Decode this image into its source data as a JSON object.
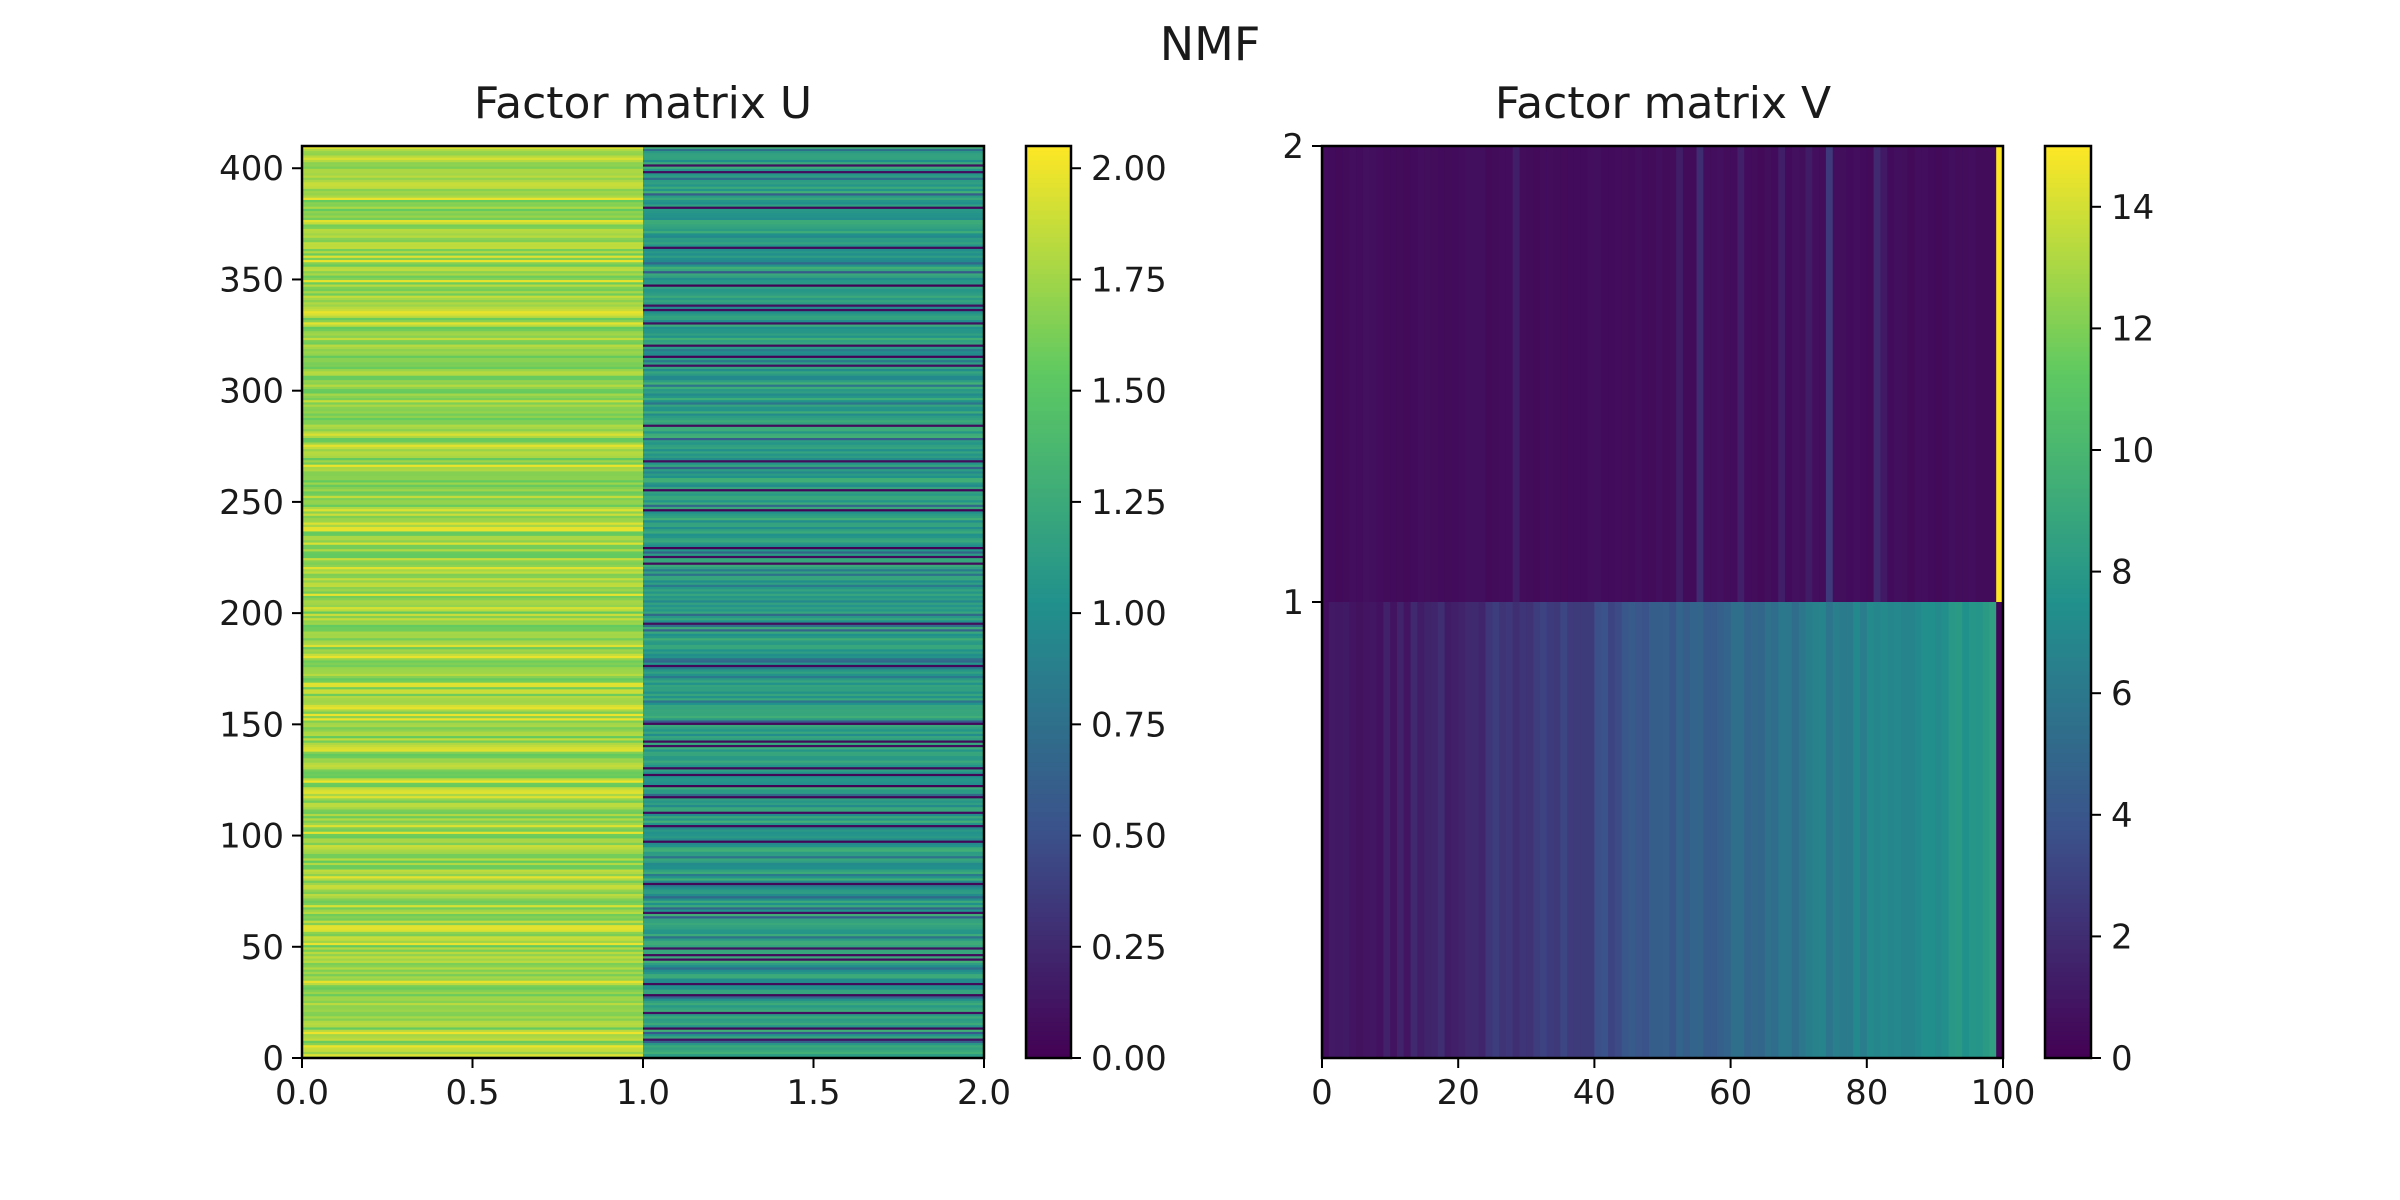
{
  "chart_data": {
    "type": "heatmap",
    "suptitle": "NMF",
    "colormap": [
      "#440154",
      "#3b528b",
      "#21918c",
      "#5ec962",
      "#fde725"
    ],
    "panels": [
      {
        "title": "Factor matrix U",
        "xlim": [
          0,
          2
        ],
        "ylim": [
          0,
          410
        ],
        "xticks": [
          "0.0",
          "0.5",
          "1.0",
          "1.5",
          "2.0"
        ],
        "yticks": [
          "0",
          "50",
          "100",
          "150",
          "200",
          "250",
          "300",
          "350",
          "400"
        ],
        "n_rows": 410,
        "columns": [
          {
            "name": "component 0",
            "typical_value": 1.8,
            "range": [
              1.55,
              2.0
            ]
          },
          {
            "name": "component 1",
            "typical_value": 1.2,
            "range": [
              0.0,
              1.35
            ],
            "low_rows": [
              8,
              13,
              20,
              28,
              33,
              44,
              46,
              49,
              65,
              78,
              97,
              104,
              110,
              117,
              122,
              127,
              130,
              140,
              142,
              150,
              176,
              195,
              222,
              225,
              229,
              246,
              255,
              268,
              284,
              311,
              315,
              320,
              330,
              336,
              338,
              347,
              364,
              382,
              398,
              401
            ]
          }
        ],
        "colorbar": {
          "min": 0.0,
          "max": 2.05,
          "ticks": [
            "0.00",
            "0.25",
            "0.50",
            "0.75",
            "1.00",
            "1.25",
            "1.50",
            "1.75",
            "2.00"
          ]
        }
      },
      {
        "title": "Factor matrix V",
        "xlim": [
          0,
          100
        ],
        "ylim": [
          0,
          2
        ],
        "xticks": [
          "0",
          "20",
          "40",
          "60",
          "80",
          "100"
        ],
        "yticks": [
          "1",
          "2"
        ],
        "rows": [
          {
            "name": "row 0 (y 0–1)",
            "range": [
              0.5,
              8.5
            ],
            "trend": "increasing with x"
          },
          {
            "name": "row 1 (y 1–2)",
            "typical_value": 0.4,
            "peak_x": 99,
            "peak_value": 15
          }
        ],
        "colorbar": {
          "min": 0,
          "max": 15,
          "ticks": [
            "0",
            "2",
            "4",
            "6",
            "8",
            "10",
            "12",
            "14"
          ]
        }
      }
    ]
  }
}
